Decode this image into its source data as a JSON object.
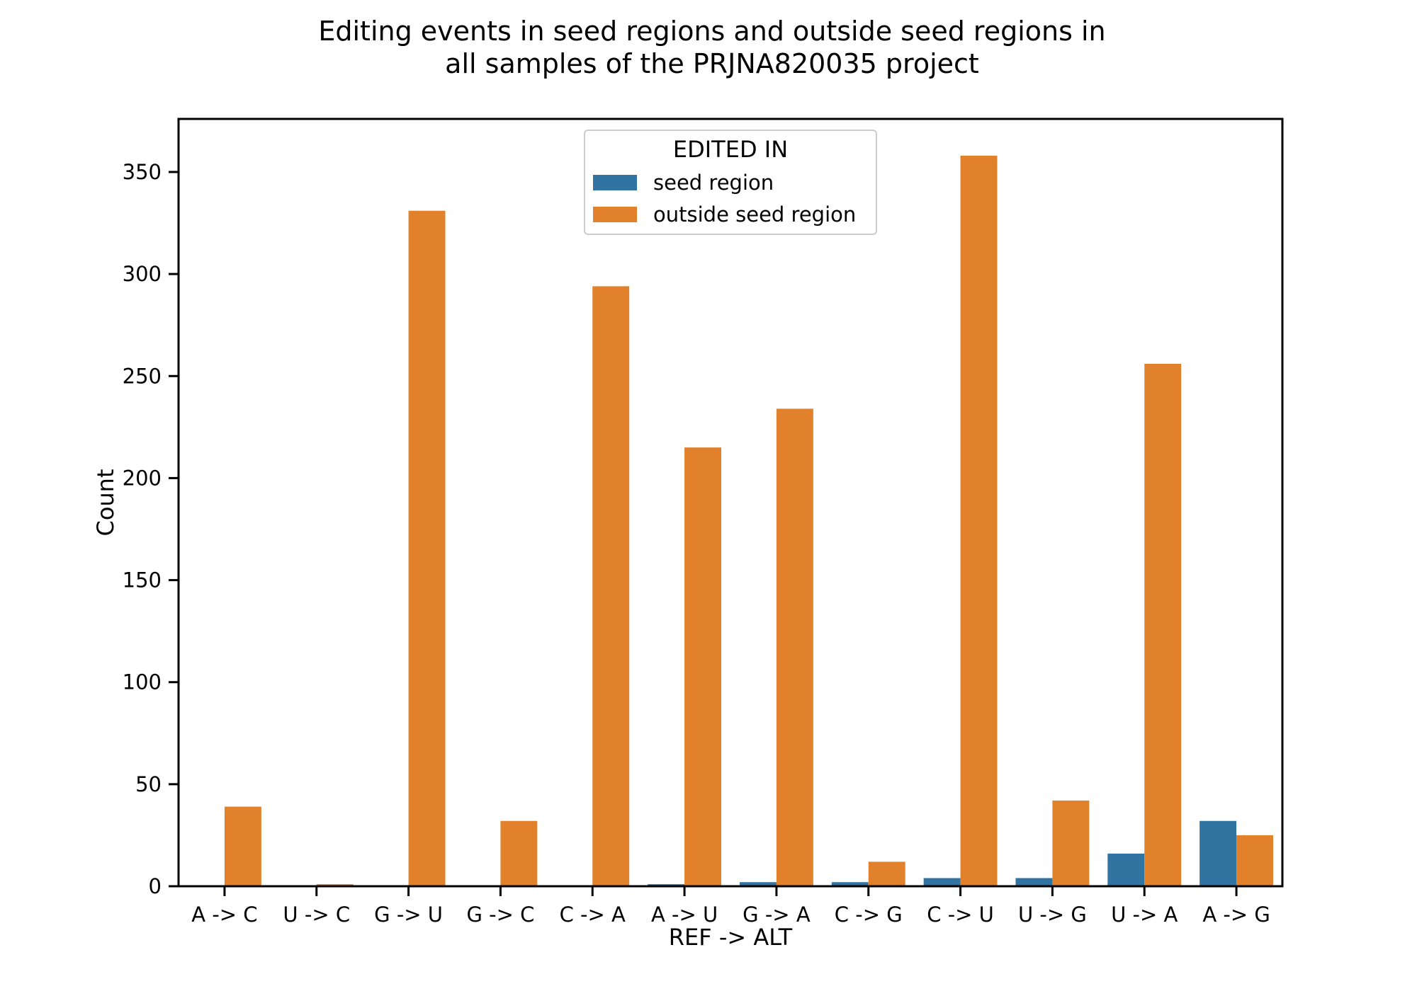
{
  "chart_data": {
    "type": "bar",
    "title_lines": [
      "Editing events in seed regions and outside seed regions in",
      "all samples of the PRJNA820035 project"
    ],
    "xlabel": "REF -> ALT",
    "ylabel": "Count",
    "categories": [
      "A -> C",
      "U -> C",
      "G -> U",
      "G -> C",
      "C -> A",
      "A -> U",
      "G -> A",
      "C -> G",
      "C -> U",
      "U -> G",
      "U -> A",
      "A -> G"
    ],
    "series": [
      {
        "name": "seed region",
        "color": "#3274a1",
        "values": [
          0,
          0,
          0,
          0,
          0,
          1,
          2,
          2,
          4,
          4,
          16,
          32
        ]
      },
      {
        "name": "outside seed region",
        "color": "#e1812c",
        "values": [
          39,
          1,
          331,
          32,
          294,
          215,
          234,
          12,
          358,
          42,
          256,
          25
        ]
      }
    ],
    "ylim": [
      0,
      376
    ],
    "yticks": [
      0,
      50,
      100,
      150,
      200,
      250,
      300,
      350
    ],
    "grid": false,
    "legend": {
      "title": "EDITED IN",
      "placement": "top-center"
    }
  }
}
